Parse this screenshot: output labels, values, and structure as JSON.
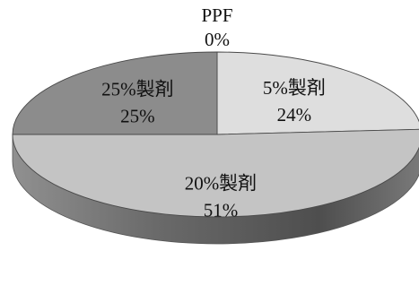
{
  "chart_data": {
    "type": "pie",
    "style": "3d",
    "legend": "none",
    "slices": [
      {
        "label": "PPF",
        "pct_label": "0%",
        "value": 0,
        "color": "#e0e0e0"
      },
      {
        "label": "5%製剤",
        "pct_label": "24%",
        "value": 24,
        "color": "#dedede"
      },
      {
        "label": "20%製剤",
        "pct_label": "51%",
        "value": 51,
        "color": "#c4c4c4"
      },
      {
        "label": "25%製剤",
        "pct_label": "25%",
        "value": 25,
        "color": "#8c8c8c"
      }
    ]
  }
}
